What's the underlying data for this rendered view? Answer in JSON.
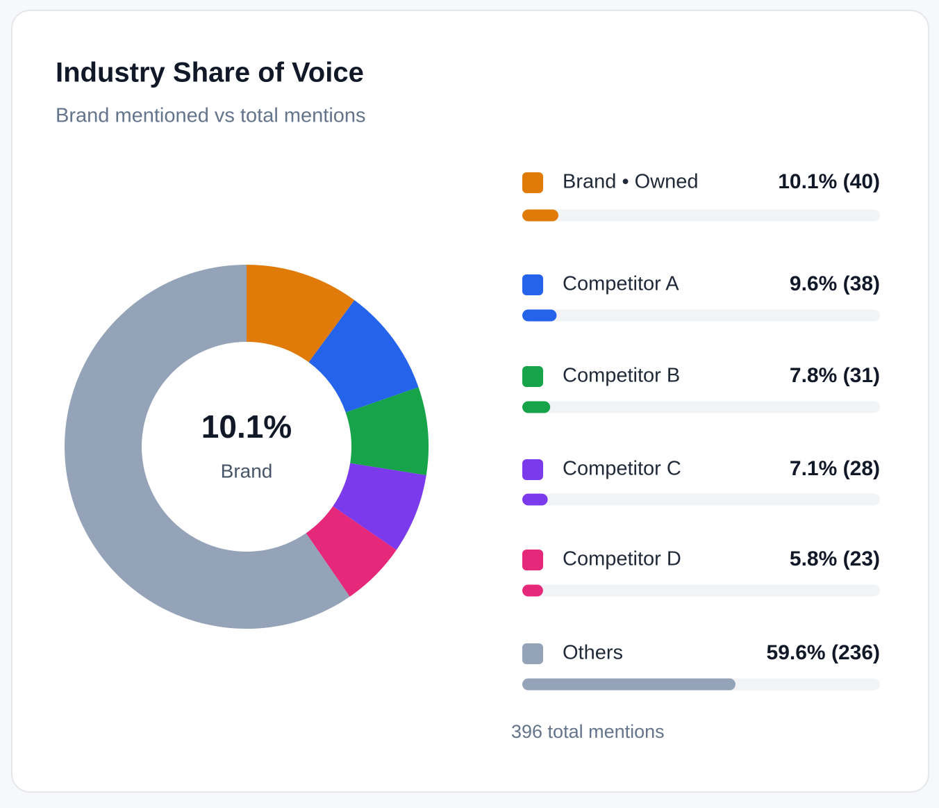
{
  "chart_data": {
    "type": "pie",
    "donut": true,
    "title": "Industry Share of Voice",
    "subtitle": "Brand mentioned vs total mentions",
    "center_label": "10.1%",
    "center_caption": "Brand",
    "categories": [
      "Brand • Owned",
      "Competitor A",
      "Competitor B",
      "Competitor C",
      "Competitor D",
      "Others"
    ],
    "values": [
      10.1,
      9.6,
      7.8,
      7.1,
      5.8,
      59.6
    ],
    "value_labels": [
      "10.1%",
      "9.6%",
      "7.8%",
      "7.1%",
      "5.8%",
      "59.6%"
    ],
    "counts": [
      40,
      38,
      31,
      28,
      23,
      236
    ],
    "count_labels": [
      "(40)",
      "(38)",
      "(31)",
      "(28)",
      "(23)",
      "(236)"
    ],
    "colors": [
      "#e07b0a",
      "#2563eb",
      "#16a34a",
      "#7c3aed",
      "#e6287a",
      "#94a3b8"
    ],
    "footnote": "396 total mentions"
  }
}
